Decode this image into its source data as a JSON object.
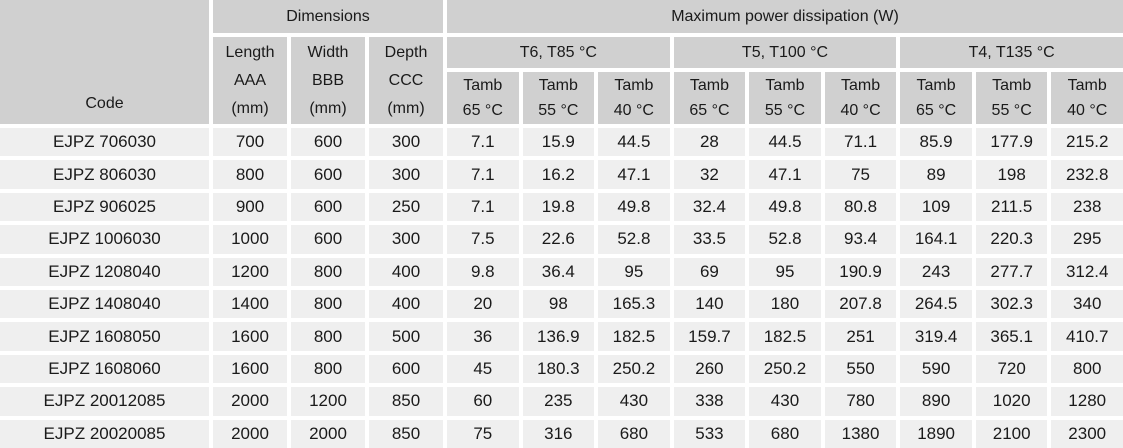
{
  "table": {
    "header": {
      "code_label": "Code",
      "dimensions_label": "Dimensions",
      "power_label": "Maximum power dissipation (W)",
      "dim_cols": [
        {
          "line1": "Length",
          "line2": "AAA",
          "line3": "(mm)"
        },
        {
          "line1": "Width",
          "line2": "BBB",
          "line3": "(mm)"
        },
        {
          "line1": "Depth",
          "line2": "CCC",
          "line3": "(mm)"
        }
      ],
      "temp_groups": [
        "T6, T85 °C",
        "T5, T100 °C",
        "T4, T135 °C"
      ],
      "tamb_label": "Tamb",
      "tamb_temps": [
        "65 °C",
        "55 °C",
        "40 °C",
        "65 °C",
        "55 °C",
        "40 °C",
        "65 °C",
        "55 °C",
        "40 °C"
      ]
    },
    "rows": [
      {
        "code": "EJPZ 706030",
        "values": [
          "700",
          "600",
          "300",
          "7.1",
          "15.9",
          "44.5",
          "28",
          "44.5",
          "71.1",
          "85.9",
          "177.9",
          "215.2"
        ]
      },
      {
        "code": "EJPZ 806030",
        "values": [
          "800",
          "600",
          "300",
          "7.1",
          "16.2",
          "47.1",
          "32",
          "47.1",
          "75",
          "89",
          "198",
          "232.8"
        ]
      },
      {
        "code": "EJPZ 906025",
        "values": [
          "900",
          "600",
          "250",
          "7.1",
          "19.8",
          "49.8",
          "32.4",
          "49.8",
          "80.8",
          "109",
          "211.5",
          "238"
        ]
      },
      {
        "code": "EJPZ 1006030",
        "values": [
          "1000",
          "600",
          "300",
          "7.5",
          "22.6",
          "52.8",
          "33.5",
          "52.8",
          "93.4",
          "164.1",
          "220.3",
          "295"
        ]
      },
      {
        "code": "EJPZ 1208040",
        "values": [
          "1200",
          "800",
          "400",
          "9.8",
          "36.4",
          "95",
          "69",
          "95",
          "190.9",
          "243",
          "277.7",
          "312.4"
        ]
      },
      {
        "code": "EJPZ 1408040",
        "values": [
          "1400",
          "800",
          "400",
          "20",
          "98",
          "165.3",
          "140",
          "180",
          "207.8",
          "264.5",
          "302.3",
          "340"
        ]
      },
      {
        "code": "EJPZ 1608050",
        "values": [
          "1600",
          "800",
          "500",
          "36",
          "136.9",
          "182.5",
          "159.7",
          "182.5",
          "251",
          "319.4",
          "365.1",
          "410.7"
        ]
      },
      {
        "code": "EJPZ 1608060",
        "values": [
          "1600",
          "800",
          "600",
          "45",
          "180.3",
          "250.2",
          "260",
          "250.2",
          "550",
          "590",
          "720",
          "800"
        ]
      },
      {
        "code": "EJPZ 20012085",
        "values": [
          "2000",
          "1200",
          "850",
          "60",
          "235",
          "430",
          "338",
          "430",
          "780",
          "890",
          "1020",
          "1280"
        ]
      },
      {
        "code": "EJPZ 20020085",
        "values": [
          "2000",
          "2000",
          "850",
          "75",
          "316",
          "680",
          "533",
          "680",
          "1380",
          "1890",
          "2100",
          "2300"
        ]
      }
    ]
  },
  "colors": {
    "header_bg": "#d0d0d0",
    "cell_bg": "#efefef",
    "gap": "#ffffff",
    "text": "#1a1a1a"
  }
}
